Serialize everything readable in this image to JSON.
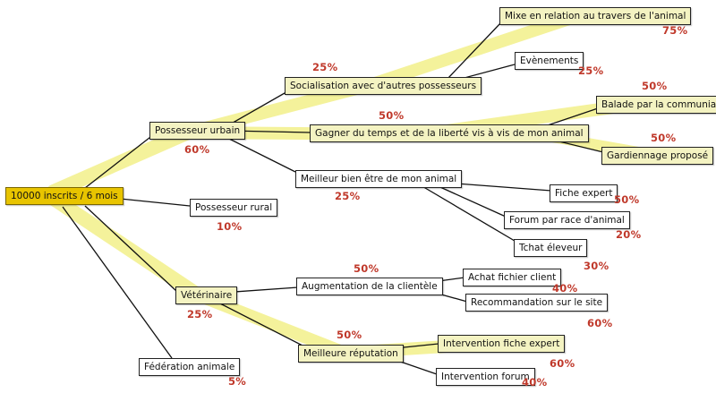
{
  "colors": {
    "root_fill": "#e8c400",
    "highlight": "#f2f08a",
    "percent_text": "#c0392b",
    "edge": "#111111"
  },
  "nodes": {
    "root": "10000 inscrits / 6 mois",
    "urbain": "Possesseur urbain",
    "rural": "Possesseur rural",
    "veterinaire": "Vétérinaire",
    "federation": "Fédération animale",
    "socialisation": "Socialisation avec d'autres possesseurs",
    "gagner": "Gagner du temps et de la liberté vis à vis de mon animal",
    "bienetre": "Meilleur bien être de mon animal",
    "mixe": "Mixe en relation au travers de l'animal",
    "evenements": "Evènements",
    "balade": "Balade par la communiauté",
    "gardiennage": "Gardiennage proposé",
    "fiche_expert": "Fiche expert",
    "forum_race": "Forum par race d'animal",
    "tchat": "Tchat éleveur",
    "augmentation": "Augmentation de la clientèle",
    "reputation": "Meilleure réputation",
    "achat": "Achat fichier client",
    "recommandation": "Recommandation sur le site",
    "intervention_expert": "Intervention fiche expert",
    "intervention_forum": "Intervention forum"
  },
  "percents": {
    "urbain": "60%",
    "rural": "10%",
    "veterinaire": "25%",
    "federation": "5%",
    "socialisation": "25%",
    "gagner": "50%",
    "bienetre": "25%",
    "mixe": "75%",
    "evenements": "25%",
    "balade": "50%",
    "gardiennage": "50%",
    "fiche_expert": "50%",
    "forum_race": "20%",
    "tchat": "30%",
    "augmentation": "50%",
    "reputation": "50%",
    "achat": "40%",
    "recommandation": "60%",
    "intervention_expert": "60%",
    "intervention_forum": "40%"
  }
}
